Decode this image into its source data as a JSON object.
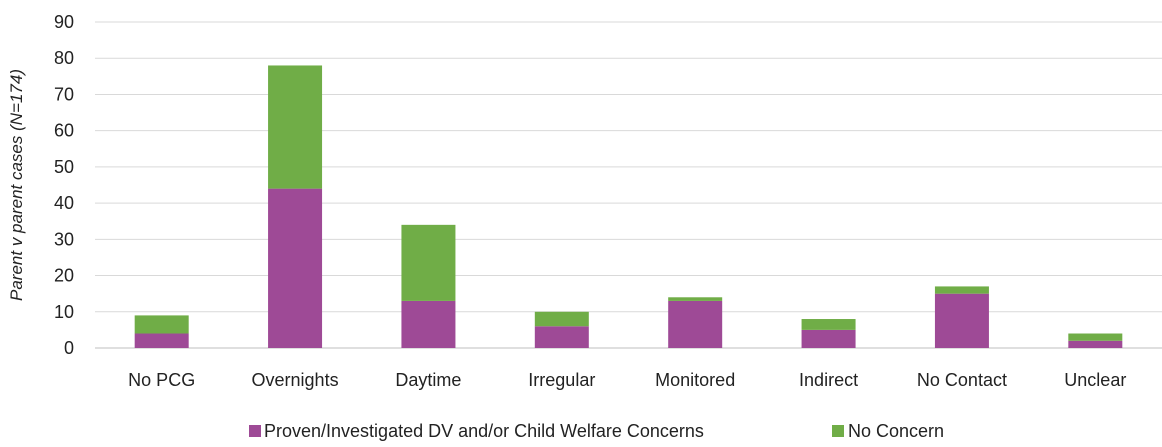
{
  "chart_data": {
    "type": "bar",
    "stacked": true,
    "title": "",
    "xlabel": "",
    "ylabel": "Parent v parent cases (N=174)",
    "ylim": [
      0,
      90
    ],
    "yticks": [
      0,
      10,
      20,
      30,
      40,
      50,
      60,
      70,
      80,
      90
    ],
    "grid": true,
    "legend_position": "bottom",
    "categories": [
      "No PCG",
      "Overnights",
      "Daytime",
      "Irregular",
      "Monitored",
      "Indirect",
      "No Contact",
      "Unclear"
    ],
    "series": [
      {
        "name": "Proven/Investigated DV and/or Child Welfare Concerns",
        "color": "#9E4A96",
        "values": [
          4,
          44,
          13,
          6,
          13,
          5,
          15,
          2
        ]
      },
      {
        "name": "No Concern",
        "color": "#70AD47",
        "values": [
          5,
          34,
          21,
          4,
          1,
          3,
          2,
          2
        ]
      }
    ]
  }
}
